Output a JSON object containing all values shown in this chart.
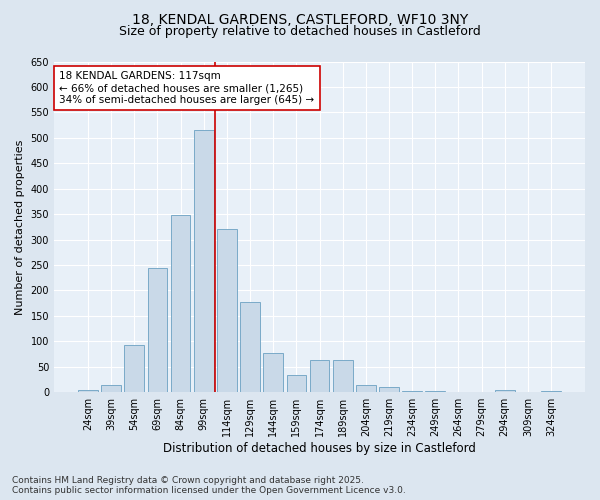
{
  "title1": "18, KENDAL GARDENS, CASTLEFORD, WF10 3NY",
  "title2": "Size of property relative to detached houses in Castleford",
  "xlabel": "Distribution of detached houses by size in Castleford",
  "ylabel": "Number of detached properties",
  "categories": [
    "24sqm",
    "39sqm",
    "54sqm",
    "69sqm",
    "84sqm",
    "99sqm",
    "114sqm",
    "129sqm",
    "144sqm",
    "159sqm",
    "174sqm",
    "189sqm",
    "204sqm",
    "219sqm",
    "234sqm",
    "249sqm",
    "264sqm",
    "279sqm",
    "294sqm",
    "309sqm",
    "324sqm"
  ],
  "values": [
    5,
    15,
    93,
    245,
    348,
    515,
    320,
    178,
    78,
    33,
    63,
    63,
    15,
    10,
    3,
    2,
    0,
    0,
    5,
    0,
    2
  ],
  "bar_color": "#c9d9e8",
  "bar_edge_color": "#7aaac8",
  "vline_color": "#cc0000",
  "annotation_text": "18 KENDAL GARDENS: 117sqm\n← 66% of detached houses are smaller (1,265)\n34% of semi-detached houses are larger (645) →",
  "annotation_box_color": "#ffffff",
  "annotation_box_edge": "#cc0000",
  "ylim_max": 650,
  "yticks": [
    0,
    50,
    100,
    150,
    200,
    250,
    300,
    350,
    400,
    450,
    500,
    550,
    600,
    650
  ],
  "footer": "Contains HM Land Registry data © Crown copyright and database right 2025.\nContains public sector information licensed under the Open Government Licence v3.0.",
  "bg_color": "#dce6f0",
  "plot_bg_color": "#e8f0f8",
  "title1_fontsize": 10,
  "title2_fontsize": 9,
  "xlabel_fontsize": 8.5,
  "ylabel_fontsize": 8,
  "tick_fontsize": 7,
  "footer_fontsize": 6.5,
  "ann_fontsize": 7.5,
  "vline_pos": 5.5
}
